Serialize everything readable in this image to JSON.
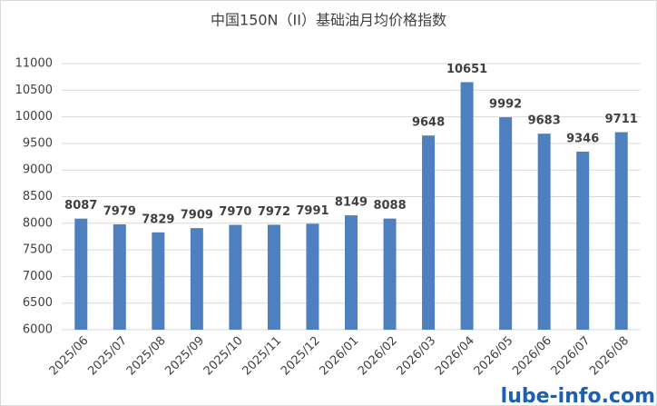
{
  "chart_data": {
    "type": "bar",
    "title": "中国150N（II）基础油月均价格指数",
    "categories": [
      "2025/06",
      "2025/07",
      "2025/08",
      "2025/09",
      "2025/10",
      "2025/11",
      "2025/12",
      "2026/01",
      "2026/02",
      "2026/03",
      "2026/04",
      "2026/05",
      "2026/06",
      "2026/07",
      "2026/08"
    ],
    "values": [
      8087,
      7979,
      7829,
      7909,
      7970,
      7972,
      7991,
      8149,
      8088,
      9648,
      10651,
      9992,
      9683,
      9346,
      9711
    ],
    "color": "#4e7fbf",
    "ylim": [
      6000,
      11000
    ],
    "yticks": [
      6000,
      6500,
      7000,
      7500,
      8000,
      8500,
      9000,
      9500,
      10000,
      10500,
      11000
    ],
    "grid": true,
    "watermark": "lube-info.com"
  }
}
